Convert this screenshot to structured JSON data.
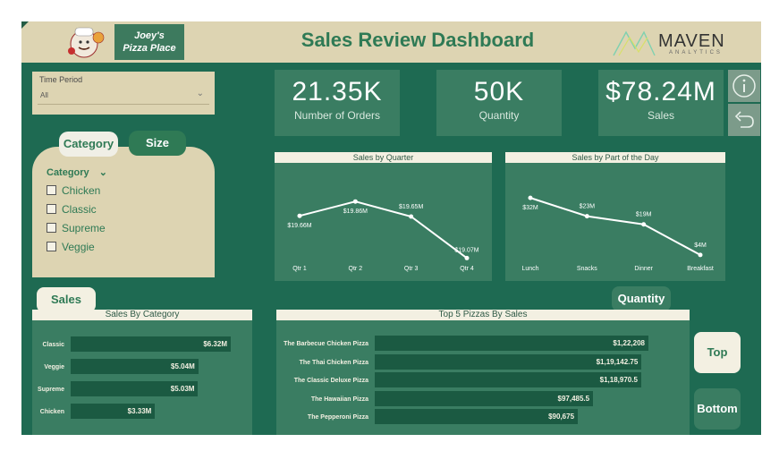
{
  "header": {
    "brand_line1": "Joey's",
    "brand_line2": "Pizza Place",
    "title": "Sales Review Dashboard",
    "partner_logo_text": "MAVEN",
    "partner_logo_sub": "ANALYTICS"
  },
  "filters": {
    "time_period": {
      "label": "Time Period",
      "value": "All"
    }
  },
  "slicer": {
    "tabs": [
      {
        "label": "Category",
        "active": true
      },
      {
        "label": "Size",
        "active": false
      }
    ],
    "header": "Category",
    "items": [
      "Chicken",
      "Classic",
      "Supreme",
      "Veggie"
    ]
  },
  "kpis": [
    {
      "value": "21.35K",
      "label": "Number of Orders"
    },
    {
      "value": "50K",
      "label": "Quantity"
    },
    {
      "value": "$78.24M",
      "label": "Sales"
    }
  ],
  "side_icons": [
    "info-icon",
    "back-arrow-icon"
  ],
  "buttons": {
    "sales": "Sales",
    "quantity": "Quantity",
    "top": "Top",
    "bottom": "Bottom"
  },
  "colors": {
    "background": "#1e6a52",
    "panel": "#3a7d62",
    "bar": "#1b5a42",
    "beige": "#ddd4b2",
    "accent": "#2f7a55"
  },
  "chart_data": [
    {
      "type": "line",
      "title": "Sales by Quarter",
      "categories": [
        "Qtr 1",
        "Qtr 2",
        "Qtr 3",
        "Qtr 4"
      ],
      "values": [
        19.66,
        19.86,
        19.65,
        19.07
      ],
      "data_labels": [
        "$19.66M",
        "$19.86M",
        "$19.65M",
        "$19.07M"
      ],
      "ylim": [
        19.0,
        19.95
      ]
    },
    {
      "type": "line",
      "title": "Sales by Part of the Day",
      "categories": [
        "Lunch",
        "Snacks",
        "Dinner",
        "Breakfast"
      ],
      "values": [
        32,
        23,
        19,
        4
      ],
      "data_labels": [
        "$32M",
        "$23M",
        "$19M",
        "$4M"
      ],
      "ylim": [
        0,
        36
      ]
    },
    {
      "type": "bar",
      "title": "Sales By Category",
      "categories": [
        "Classic",
        "Veggie",
        "Supreme",
        "Chicken"
      ],
      "values": [
        6.32,
        5.04,
        5.03,
        3.33
      ],
      "data_labels": [
        "$6.32M",
        "$5.04M",
        "$5.03M",
        "$3.33M"
      ]
    },
    {
      "type": "bar",
      "title": "Top 5 Pizzas By Sales",
      "categories": [
        "The Barbecue Chicken Pizza",
        "The Thai Chicken Pizza",
        "The Classic Deluxe Pizza",
        "The Hawaiian Pizza",
        "The Pepperoni Pizza"
      ],
      "values": [
        122208,
        119142.75,
        118970.5,
        97485.5,
        90675
      ],
      "data_labels": [
        "$1,22,208",
        "$1,19,142.75",
        "$1,18,970.5",
        "$97,485.5",
        "$90,675"
      ]
    }
  ]
}
